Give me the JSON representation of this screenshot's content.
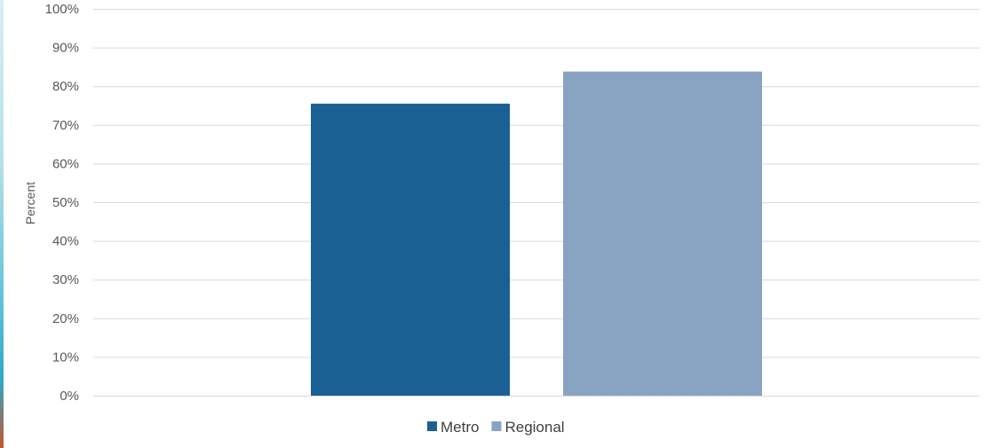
{
  "chart_data": {
    "type": "bar",
    "title": "",
    "xlabel": "",
    "ylabel": "Percent",
    "categories": [
      ""
    ],
    "series": [
      {
        "name": "Metro",
        "values": [
          75.5
        ],
        "color": "#1b6094"
      },
      {
        "name": "Regional",
        "values": [
          83.8
        ],
        "color": "#89a3c3"
      }
    ],
    "ylim": [
      0,
      100
    ],
    "yticks": [
      "0%",
      "10%",
      "20%",
      "30%",
      "40%",
      "50%",
      "60%",
      "70%",
      "80%",
      "90%",
      "100%"
    ],
    "grid": true,
    "legend": "bottom-center"
  }
}
